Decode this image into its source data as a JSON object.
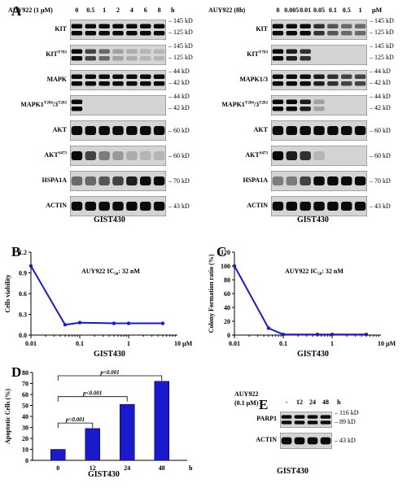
{
  "panel_a": {
    "letter": "A",
    "left": {
      "treatment": "AUY922 (1 µM)",
      "lanes": [
        "0",
        "0.5",
        "1",
        "2",
        "4",
        "6",
        "8"
      ],
      "unit": "h",
      "rows": [
        {
          "label": "KIT",
          "sup": "",
          "kd": [
            "145 kD",
            "125 kD"
          ],
          "bands": [
            1,
            1,
            1,
            1,
            1,
            1,
            1
          ]
        },
        {
          "label": "KIT",
          "sup": "Y703",
          "kd": [
            "145 kD",
            "125 kD"
          ],
          "bands": [
            1,
            0.7,
            0.5,
            0.2,
            0.15,
            0.1,
            0.1
          ]
        },
        {
          "label": "MAPK",
          "sup": "",
          "kd": [
            "44 kD",
            "42 kD"
          ],
          "bands": [
            1,
            1,
            1,
            1,
            1,
            1,
            1
          ]
        },
        {
          "label": "MAPK1",
          "sup": "Y204",
          "label2": "/3",
          "sup2": "T202",
          "kd": [
            "44 kD",
            "42 kD"
          ],
          "bands": [
            1,
            0,
            0,
            0,
            0,
            0,
            0
          ]
        },
        {
          "label": "AKT",
          "sup": "",
          "kd": [
            "60 kD"
          ],
          "bands": [
            1,
            1,
            1,
            1,
            1,
            1,
            1
          ]
        },
        {
          "label": "AKT",
          "sup": "S473",
          "kd": [
            "60 kD"
          ],
          "bands": [
            1,
            0.7,
            0.4,
            0.25,
            0.15,
            0.1,
            0.1
          ]
        },
        {
          "label": "HSPA1A",
          "sup": "",
          "kd": [
            "70 kD"
          ],
          "bands": [
            0.5,
            0.5,
            0.6,
            0.7,
            0.9,
            1,
            1
          ]
        },
        {
          "label": "ACTIN",
          "sup": "",
          "kd": [
            "43 kD"
          ],
          "bands": [
            1,
            1,
            1,
            1,
            1,
            1,
            1
          ]
        }
      ],
      "caption": "GIST430"
    },
    "right": {
      "treatment": "AUY922 (8h)",
      "lanes": [
        "0",
        "0.005",
        "0.01",
        "0.05",
        "0.1",
        "0.5",
        "1"
      ],
      "unit": "µM",
      "rows": [
        {
          "label": "KIT",
          "sup": "",
          "kd": [
            "145 kD",
            "125 kD"
          ],
          "bands": [
            1,
            1,
            1,
            0.8,
            0.6,
            0.5,
            0.5
          ]
        },
        {
          "label": "KIT",
          "sup": "Y703",
          "kd": [
            "145 kD",
            "125 kD"
          ],
          "bands": [
            1,
            0.9,
            0.8,
            0,
            0,
            0,
            0
          ]
        },
        {
          "label": "MAPK1/3",
          "sup": "",
          "kd": [
            "44 kD",
            "42 kD"
          ],
          "bands": [
            1,
            1,
            1,
            0.9,
            0.8,
            0.7,
            0.7
          ]
        },
        {
          "label": "MAPK1",
          "sup": "Y204",
          "label2": "/3",
          "sup2": "T202",
          "kd": [
            "44 kD",
            "42 kD"
          ],
          "bands": [
            1,
            1,
            0.9,
            0.2,
            0,
            0,
            0
          ]
        },
        {
          "label": "AKT",
          "sup": "",
          "kd": [
            "60 kD"
          ],
          "bands": [
            1,
            1,
            1,
            1,
            1,
            1,
            1
          ]
        },
        {
          "label": "AKT",
          "sup": "S473",
          "kd": [
            "60 kD"
          ],
          "bands": [
            1,
            0.9,
            0.8,
            0.1,
            0,
            0,
            0
          ]
        },
        {
          "label": "HSPA1A",
          "sup": "",
          "kd": [
            "70 kD"
          ],
          "bands": [
            0.4,
            0.4,
            0.7,
            1,
            1,
            1,
            1
          ]
        },
        {
          "label": "ACTIN",
          "sup": "",
          "kd": [
            "43 kD"
          ],
          "bands": [
            1,
            1,
            1,
            1,
            1,
            1,
            1
          ]
        }
      ],
      "caption": "GIST430"
    }
  },
  "panel_b": {
    "letter": "B",
    "caption": "GIST430",
    "annotation": "AUY922 IC",
    "annotation_sub": "50",
    "annotation_rest": ": 32 nM"
  },
  "panel_c": {
    "letter": "C",
    "caption": "GIST430",
    "annotation": "AUY922 IC",
    "annotation_sub": "50",
    "annotation_rest": ": 32 nM"
  },
  "panel_d": {
    "letter": "D",
    "caption": "GIST430"
  },
  "panel_e": {
    "letter": "E",
    "treatment_line1": "AUY922",
    "treatment_line2": "(0.1 µM)",
    "lanes": [
      "-",
      "12",
      "24",
      "48"
    ],
    "unit": "h",
    "rows": [
      {
        "label": "PARP1",
        "kd": [
          "116 kD",
          "89 kD"
        ],
        "bands": [
          1,
          1,
          1,
          1
        ]
      },
      {
        "label": "ACTIN",
        "kd": [
          "43 kD"
        ],
        "bands": [
          1,
          1,
          1,
          1
        ]
      }
    ],
    "caption": "GIST430"
  },
  "chart_data": [
    {
      "type": "line",
      "panel": "B",
      "x": [
        0.01,
        0.05,
        0.1,
        0.5,
        1,
        5
      ],
      "series": [
        {
          "values": [
            1.0,
            0.15,
            0.18,
            0.17,
            0.17,
            0.17
          ]
        }
      ],
      "xlabel": "",
      "ylabel": "Cells viability",
      "x_scale": "log",
      "xlim": [
        0.01,
        10
      ],
      "ylim": [
        0,
        1.2
      ],
      "x_ticks": [
        "0.01",
        "0.1",
        "1",
        "10"
      ],
      "x_unit": "µM",
      "y_ticks": [
        "0.0",
        "0.3",
        "0.6",
        "0.9",
        "1.2"
      ],
      "grid": false
    },
    {
      "type": "line",
      "panel": "C",
      "x": [
        0.01,
        0.05,
        0.1,
        0.5,
        1,
        5
      ],
      "series": [
        {
          "values": [
            100,
            10,
            1,
            1,
            1,
            1
          ]
        }
      ],
      "xlabel": "",
      "ylabel": "Colony Formation ratio (%)",
      "x_scale": "log",
      "xlim": [
        0.01,
        10
      ],
      "ylim": [
        0,
        120
      ],
      "x_ticks": [
        "0.01",
        "0.1",
        "1",
        "10"
      ],
      "x_unit": "µM",
      "y_ticks": [
        "0",
        "20",
        "40",
        "60",
        "80",
        "100",
        "120"
      ],
      "grid": false
    },
    {
      "type": "bar",
      "panel": "D",
      "categories": [
        "0",
        "12",
        "24",
        "48"
      ],
      "values": [
        10,
        29,
        51,
        72
      ],
      "xlabel": "",
      "x_unit": "h",
      "ylabel": "Apoptotic Cells (%)",
      "ylim": [
        0,
        80
      ],
      "y_ticks": [
        "0",
        "10",
        "20",
        "30",
        "40",
        "50",
        "60",
        "70",
        "80"
      ],
      "significance": [
        {
          "from": "0",
          "to": "12",
          "label": "p<0.001"
        },
        {
          "from": "0",
          "to": "24",
          "label": "p<0.001"
        },
        {
          "from": "0",
          "to": "48",
          "label": "p<0.001"
        }
      ],
      "color": "#1a1acc"
    }
  ]
}
